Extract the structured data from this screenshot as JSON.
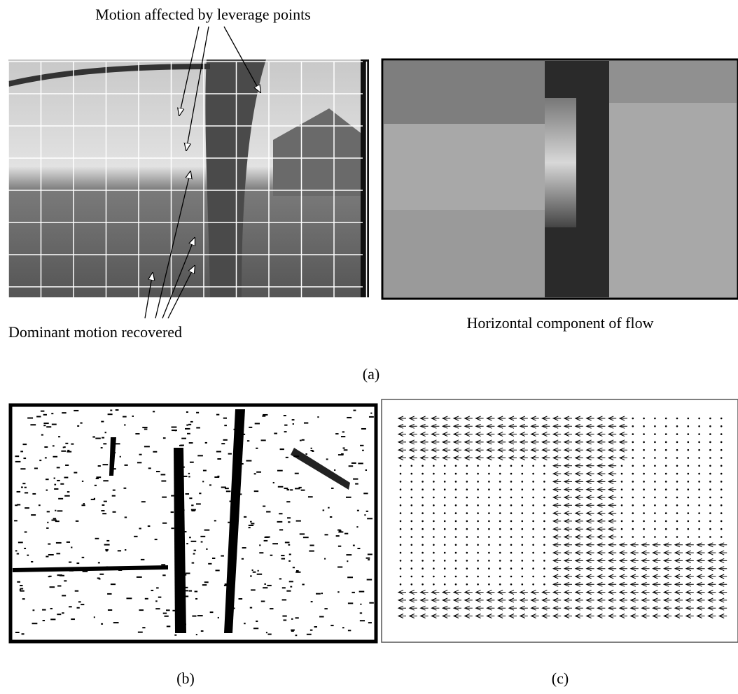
{
  "figure": {
    "panel_a": {
      "annotation_top": "Motion affected by leverage points",
      "annotation_bottom": "Dominant motion recovered",
      "flow_caption": "Horizontal component of flow",
      "label": "(a)"
    },
    "panel_b": {
      "label": "(b)"
    },
    "panel_c": {
      "label": "(c)"
    }
  }
}
